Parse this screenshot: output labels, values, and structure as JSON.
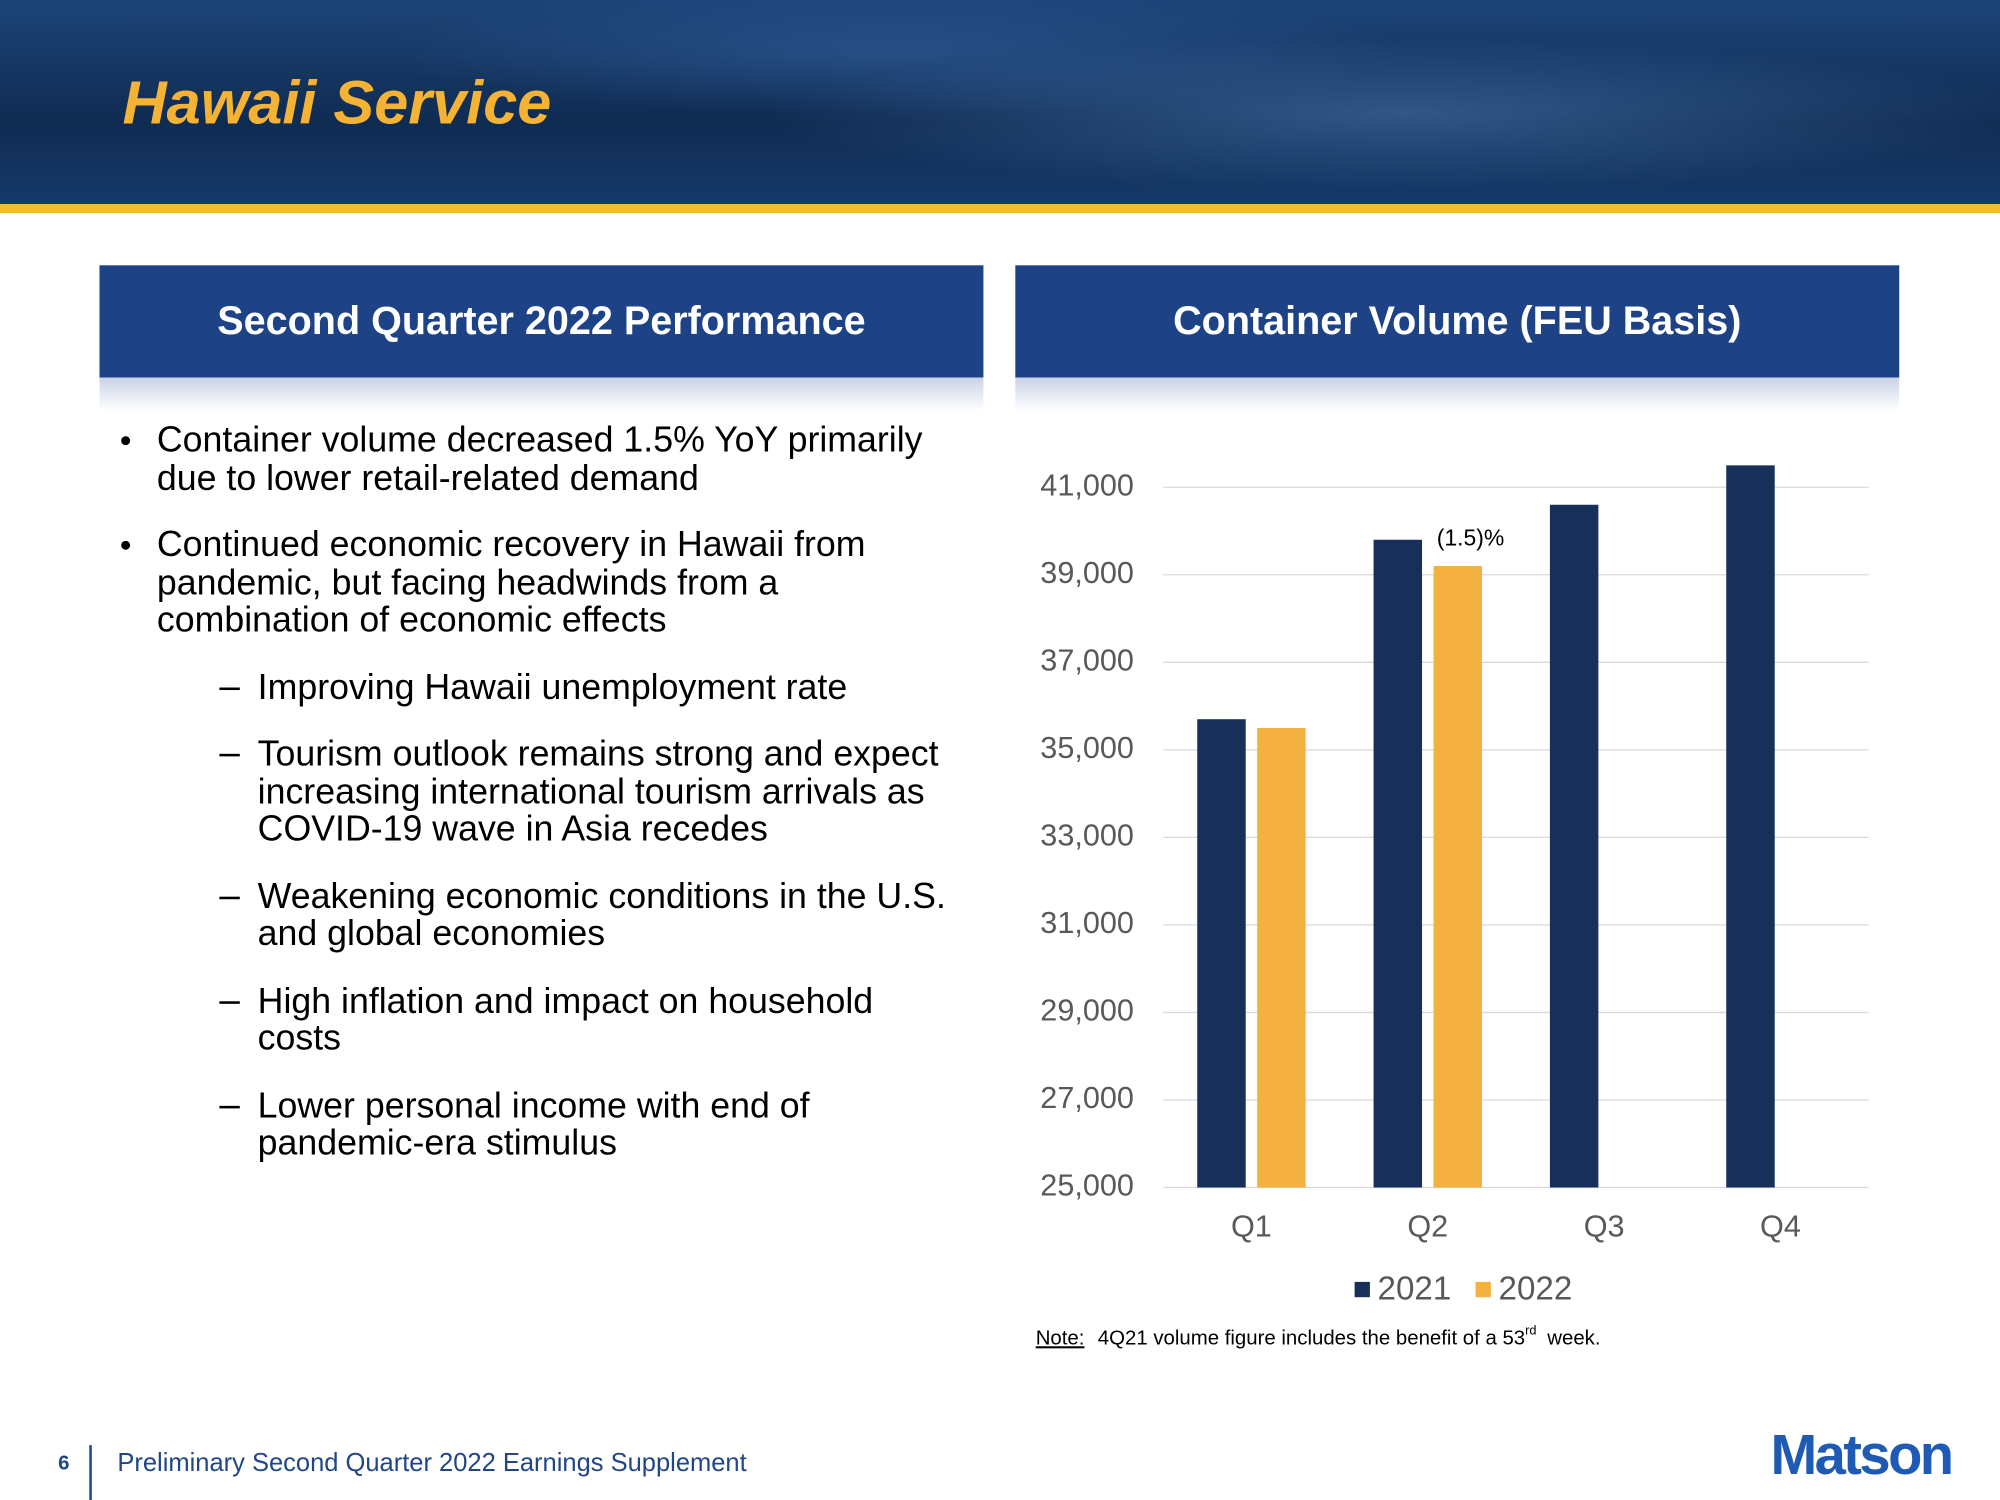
{
  "header": {
    "title": "Hawaii Service"
  },
  "left_panel": {
    "title": "Second Quarter 2022 Performance",
    "bullets": [
      {
        "text": "Container volume decreased 1.5% YoY primarily due to lower retail-related demand"
      },
      {
        "text": "Continued economic recovery in Hawaii from pandemic, but facing headwinds from a combination of economic effects",
        "sub": [
          "Improving Hawaii unemployment rate",
          "Tourism outlook remains strong and expect increasing international tourism arrivals as COVID-19 wave in Asia recedes",
          "Weakening economic conditions in the U.S. and global economies",
          "High inflation and impact on household costs",
          "Lower personal income with end of pandemic-era stimulus"
        ]
      }
    ]
  },
  "chart_data": {
    "type": "bar",
    "title": "Container Volume (FEU Basis)",
    "categories": [
      "Q1",
      "Q2",
      "Q3",
      "Q4"
    ],
    "series": [
      {
        "name": "2021",
        "color": "#17305a",
        "values": [
          35700,
          39800,
          40600,
          41500
        ]
      },
      {
        "name": "2022",
        "color": "#f4b140",
        "values": [
          35500,
          39200,
          null,
          null
        ]
      }
    ],
    "ylim": [
      25000,
      42000
    ],
    "yticks": [
      {
        "value": 25000,
        "label": "25,000"
      },
      {
        "value": 27000,
        "label": "27,000"
      },
      {
        "value": 29000,
        "label": "29,000"
      },
      {
        "value": 31000,
        "label": "31,000"
      },
      {
        "value": 33000,
        "label": "33,000"
      },
      {
        "value": 35000,
        "label": "35,000"
      },
      {
        "value": 37000,
        "label": "37,000"
      },
      {
        "value": 39000,
        "label": "39,000"
      },
      {
        "value": 41000,
        "label": "41,000"
      }
    ],
    "grid": true,
    "legend": "bottom",
    "annotation": "(1.5)%"
  },
  "note": {
    "label": "Note:",
    "text": "4Q21 volume figure includes the benefit of a 53",
    "superscript": "rd",
    "text_after": "week."
  },
  "footer": {
    "page": 6,
    "text": "Preliminary Second Quarter 2022 Earnings Supplement",
    "logo": "Matson"
  }
}
